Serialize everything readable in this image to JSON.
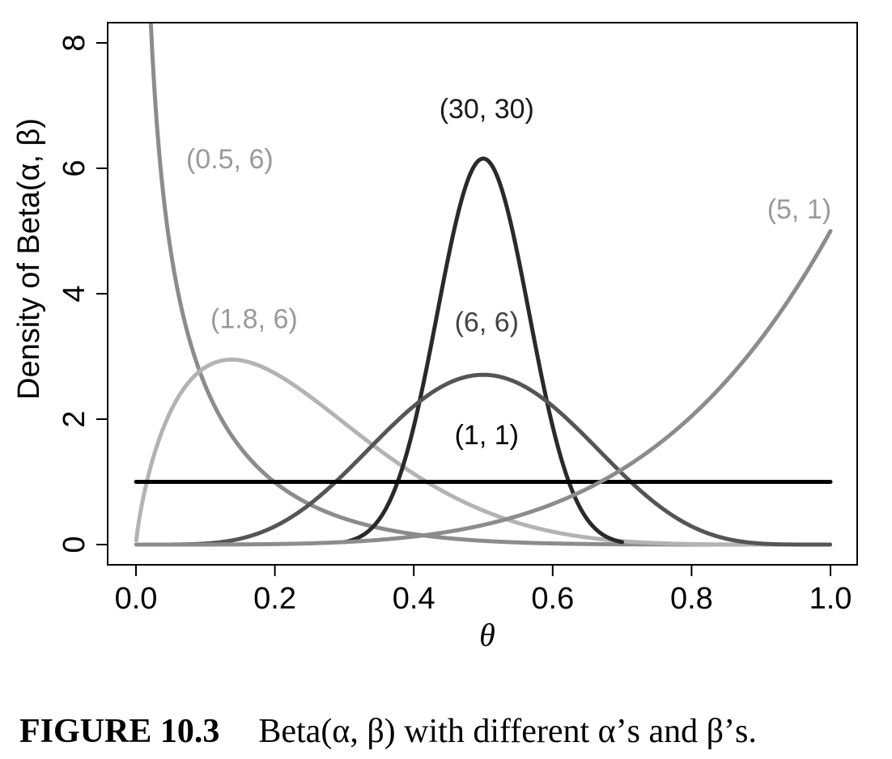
{
  "chart_data": {
    "type": "line",
    "xlabel": "θ",
    "ylabel": "Density of Beta(α, β)",
    "xlim": [
      0,
      1
    ],
    "ylim": [
      0,
      8
    ],
    "x_ticks": [
      "0.0",
      "0.2",
      "0.4",
      "0.6",
      "0.8",
      "1.0"
    ],
    "y_ticks": [
      "0",
      "2",
      "4",
      "6",
      "8"
    ],
    "grid": false,
    "series": [
      {
        "name": "(0.5, 6)",
        "alpha": 0.5,
        "beta": 6,
        "color": "#8c8c8c",
        "x": [
          0.02,
          0.05,
          0.1,
          0.2,
          0.3,
          0.4,
          0.5,
          0.6,
          0.8,
          1.0
        ],
        "y": [
          8.2,
          4.8,
          2.79,
          1.14,
          0.44,
          0.15,
          0.04,
          0.01,
          0.0,
          0.0
        ]
      },
      {
        "name": "(1.8, 6)",
        "alpha": 1.8,
        "beta": 6,
        "color": "#b3b3b3",
        "x": [
          0.0,
          0.05,
          0.1,
          0.14,
          0.2,
          0.3,
          0.4,
          0.5,
          0.6,
          0.8,
          1.0
        ],
        "y": [
          0.25,
          2.02,
          2.86,
          2.95,
          2.75,
          1.88,
          1.03,
          0.45,
          0.16,
          0.01,
          0.0
        ]
      },
      {
        "name": "(30, 30)",
        "alpha": 30,
        "beta": 30,
        "color": "#2a2a2a",
        "x": [
          0.3,
          0.35,
          0.4,
          0.45,
          0.5,
          0.55,
          0.6,
          0.65,
          0.7
        ],
        "y": [
          0.02,
          0.21,
          1.79,
          5.01,
          6.14,
          5.01,
          1.79,
          0.21,
          0.02
        ]
      },
      {
        "name": "(6, 6)",
        "alpha": 6,
        "beta": 6,
        "color": "#555555",
        "x": [
          0.0,
          0.1,
          0.2,
          0.3,
          0.4,
          0.5,
          0.6,
          0.7,
          0.8,
          0.9,
          1.0
        ],
        "y": [
          0.0,
          0.04,
          0.46,
          1.5,
          2.5,
          2.71,
          2.5,
          1.5,
          0.46,
          0.04,
          0.0
        ]
      },
      {
        "name": "(1, 1)",
        "alpha": 1,
        "beta": 1,
        "color": "#000000",
        "x": [
          0.0,
          1.0
        ],
        "y": [
          1.0,
          1.0
        ]
      },
      {
        "name": "(5, 1)",
        "alpha": 5,
        "beta": 1,
        "color": "#8c8c8c",
        "x": [
          0.0,
          0.2,
          0.4,
          0.5,
          0.6,
          0.7,
          0.8,
          0.9,
          1.0
        ],
        "y": [
          0.0,
          0.01,
          0.13,
          0.31,
          0.65,
          1.2,
          2.05,
          3.28,
          5.0
        ]
      }
    ],
    "annotations": [
      {
        "text": "(0.5, 6)",
        "x": 0.135,
        "y": 6.0,
        "color": "#9a9a9a"
      },
      {
        "text": "(1.8, 6)",
        "x": 0.17,
        "y": 3.45,
        "color": "#9a9a9a"
      },
      {
        "text": "(30, 30)",
        "x": 0.505,
        "y": 6.8,
        "color": "#1a1a1a"
      },
      {
        "text": "(6, 6)",
        "x": 0.505,
        "y": 3.4,
        "color": "#444444"
      },
      {
        "text": "(1, 1)",
        "x": 0.505,
        "y": 1.6,
        "color": "#000000"
      },
      {
        "text": "(5, 1)",
        "x": 0.955,
        "y": 5.2,
        "color": "#9a9a9a"
      }
    ]
  },
  "caption": {
    "figure_number": "FIGURE 10.3",
    "text": "Beta(α, β) with different α’s and β’s."
  }
}
